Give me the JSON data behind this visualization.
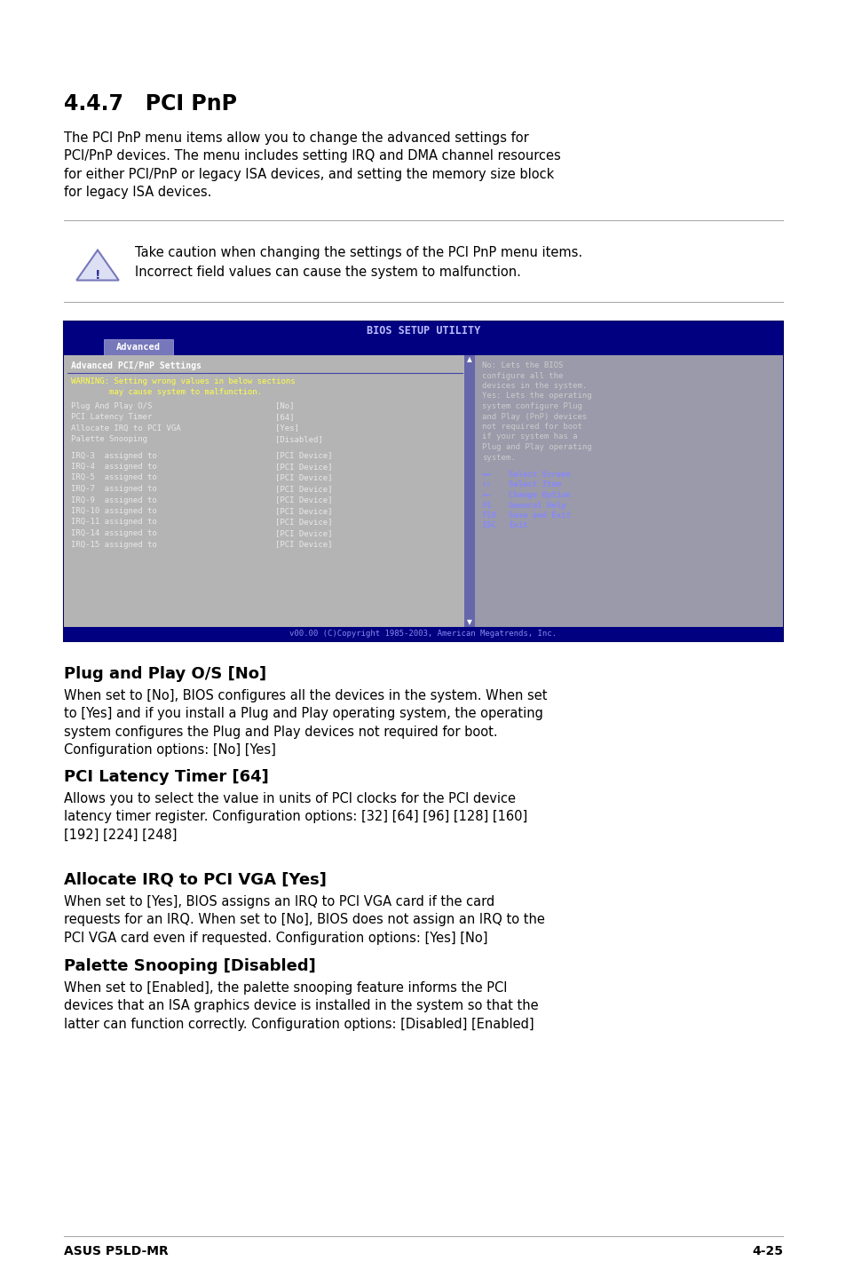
{
  "page_bg": "#ffffff",
  "title": "4.4.7   PCI PnP",
  "title_fontsize": 17,
  "intro_text": "The PCI PnP menu items allow you to change the advanced settings for\nPCI/PnP devices. The menu includes setting IRQ and DMA channel resources\nfor either PCI/PnP or legacy ISA devices, and setting the memory size block\nfor legacy ISA devices.",
  "caution_text": "Take caution when changing the settings of the PCI PnP menu items.\nIncorrect field values can cause the system to malfunction.",
  "bios_title": "BIOS SETUP UTILITY",
  "bios_tab": "Advanced",
  "bios_left_header": "Advanced PCI/PnP Settings",
  "bios_warning_line1": "WARNING: Setting wrong values in below sections",
  "bios_warning_line2": "        may cause system to malfunction.",
  "bios_left_items": [
    [
      "Plug And Play O/S",
      "[No]"
    ],
    [
      "PCI Latency Timer",
      "[64]"
    ],
    [
      "Allocate IRQ to PCI VGA",
      "[Yes]"
    ],
    [
      "Palette Snooping",
      "[Disabled]"
    ]
  ],
  "bios_irq_items": [
    [
      "IRQ-3  assigned to",
      "[PCI Device]"
    ],
    [
      "IRQ-4  assigned to",
      "[PCI Device]"
    ],
    [
      "IRQ-5  assigned to",
      "[PCI Device]"
    ],
    [
      "IRQ-7  assigned to",
      "[PCI Device]"
    ],
    [
      "IRQ-9  assigned to",
      "[PCI Device]"
    ],
    [
      "IRQ-10 assigned to",
      "[PCI Device]"
    ],
    [
      "IRQ-11 assigned to",
      "[PCI Device]"
    ],
    [
      "IRQ-14 assigned to",
      "[PCI Device]"
    ],
    [
      "IRQ-15 assigned to",
      "[PCI Device]"
    ]
  ],
  "bios_right_lines": [
    "No: Lets the BIOS",
    "configure all the",
    "devices in the system.",
    "Yes: Lets the operating",
    "system configure Plug",
    "and Play (PnP) devices",
    "not required for boot",
    "if your system has a",
    "Plug and Play operating",
    "system."
  ],
  "bios_nav_items": [
    [
      "↔↔",
      "Select Screen"
    ],
    [
      "↑↓",
      "Select Item"
    ],
    [
      "←←",
      "Change Option"
    ],
    [
      "F1",
      "General Help"
    ],
    [
      "F10",
      "Save and Exit"
    ],
    [
      "ESC",
      "Exit"
    ]
  ],
  "bios_footer": "v00.00 (C)Copyright 1985-2003, American Megatrends, Inc.",
  "section1_title": "Plug and Play O/S [No]",
  "section1_text": "When set to [No], BIOS configures all the devices in the system. When set\nto [Yes] and if you install a Plug and Play operating system, the operating\nsystem configures the Plug and Play devices not required for boot.\nConfiguration options: [No] [Yes]",
  "section2_title": "PCI Latency Timer [64]",
  "section2_text": "Allows you to select the value in units of PCI clocks for the PCI device\nlatency timer register. Configuration options: [32] [64] [96] [128] [160]\n[192] [224] [248]",
  "section3_title": "Allocate IRQ to PCI VGA [Yes]",
  "section3_text": "When set to [Yes], BIOS assigns an IRQ to PCI VGA card if the card\nrequests for an IRQ. When set to [No], BIOS does not assign an IRQ to the\nPCI VGA card even if requested. Configuration options: [Yes] [No]",
  "section4_title": "Palette Snooping [Disabled]",
  "section4_text": "When set to [Enabled], the palette snooping feature informs the PCI\ndevices that an ISA graphics device is installed in the system so that the\nlatter can function correctly. Configuration options: [Disabled] [Enabled]",
  "footer_left": "ASUS P5LD-MR",
  "footer_right": "4-25"
}
